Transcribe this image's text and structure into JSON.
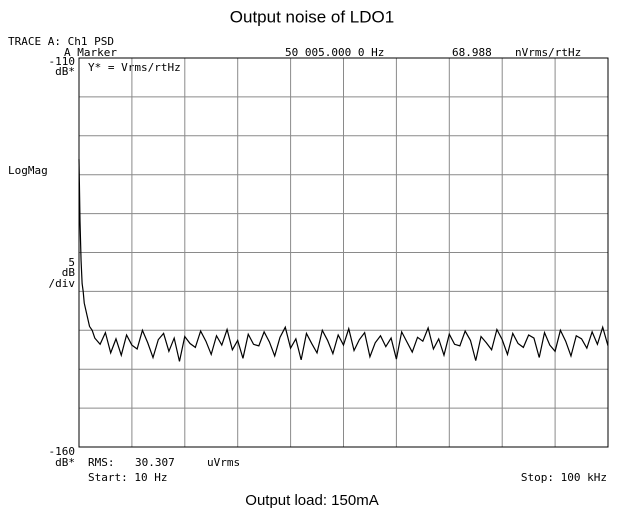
{
  "chart_data": {
    "type": "line",
    "title": "Output noise of LDO1",
    "trace_label": "TRACE A: Ch1 PSD",
    "marker": {
      "label": "A Marker",
      "frequency": "50 005.000 0 Hz",
      "value": 68.988,
      "unit": "nVrms/rtHz"
    },
    "y_unit": "dB*",
    "y_definition": "Y* = Vrms/rtHz",
    "format": "LogMag",
    "scale": [
      "5",
      "dB",
      "/div"
    ],
    "rms": {
      "label": "RMS:",
      "value": 30.307,
      "unit": "uVrms"
    },
    "start_label": "Start: 10 Hz",
    "stop_label": "Stop: 100 kHz",
    "caption": "Output load: 150mA",
    "xlim": [
      10,
      100000
    ],
    "xticks": [
      10,
      10009,
      20008,
      30007,
      40006,
      50005,
      60004,
      70003,
      80002,
      90001,
      100000
    ],
    "ylim": [
      -160,
      -110
    ],
    "yticks": [
      -160,
      -155,
      -150,
      -145,
      -140,
      -135,
      -130,
      -125,
      -120,
      -115,
      -110
    ],
    "grid": true,
    "color": "#000000",
    "x": [
      10,
      200,
      400,
      600,
      800,
      1000,
      1500,
      2000,
      2500,
      3000,
      4000,
      5000,
      6000,
      7000,
      8000,
      9000,
      10000,
      11000,
      12000,
      13000,
      14000,
      15000,
      16000,
      17000,
      18000,
      19000,
      20000,
      21000,
      22000,
      23000,
      24000,
      25000,
      26000,
      27000,
      28000,
      29000,
      30000,
      31000,
      32000,
      33000,
      34000,
      35000,
      36000,
      37000,
      38000,
      39000,
      40000,
      41000,
      42000,
      43000,
      44000,
      45000,
      46000,
      47000,
      48000,
      49000,
      50000,
      51000,
      52000,
      53000,
      54000,
      55000,
      56000,
      57000,
      58000,
      59000,
      60000,
      61000,
      62000,
      63000,
      64000,
      65000,
      66000,
      67000,
      68000,
      69000,
      70000,
      71000,
      72000,
      73000,
      74000,
      75000,
      76000,
      77000,
      78000,
      79000,
      80000,
      81000,
      82000,
      83000,
      84000,
      85000,
      86000,
      87000,
      88000,
      89000,
      90000,
      91000,
      92000,
      93000,
      94000,
      95000,
      96000,
      97000,
      98000,
      99000,
      100000
    ],
    "values": [
      -123,
      -131,
      -136,
      -139,
      -140,
      -141.5,
      -143,
      -144.5,
      -145,
      -146,
      -146.8,
      -145.3,
      -147.9,
      -146.1,
      -148.2,
      -145.6,
      -146.9,
      -147.4,
      -145.0,
      -146.6,
      -148.5,
      -146.2,
      -145.4,
      -147.7,
      -146.0,
      -149.0,
      -145.8,
      -146.7,
      -147.2,
      -145.1,
      -146.4,
      -148.1,
      -145.7,
      -146.9,
      -144.9,
      -147.5,
      -146.3,
      -148.6,
      -145.5,
      -146.8,
      -147.0,
      -145.2,
      -146.5,
      -148.3,
      -145.9,
      -144.6,
      -147.3,
      -146.1,
      -148.8,
      -145.4,
      -146.7,
      -147.9,
      -145.0,
      -146.3,
      -148.0,
      -145.6,
      -146.9,
      -144.8,
      -147.6,
      -146.2,
      -145.3,
      -148.4,
      -146.6,
      -145.7,
      -147.1,
      -146.0,
      -148.7,
      -145.2,
      -146.5,
      -147.8,
      -145.9,
      -146.4,
      -144.7,
      -147.4,
      -146.1,
      -148.2,
      -145.5,
      -146.8,
      -147.0,
      -145.1,
      -146.3,
      -148.9,
      -145.8,
      -146.6,
      -147.5,
      -144.9,
      -146.2,
      -148.1,
      -145.4,
      -146.7,
      -147.2,
      -145.6,
      -146.0,
      -148.5,
      -145.3,
      -146.9,
      -147.7,
      -145.0,
      -146.4,
      -148.3,
      -145.7,
      -146.1,
      -147.3,
      -145.2,
      -146.8,
      -144.6,
      -147.0
    ]
  }
}
